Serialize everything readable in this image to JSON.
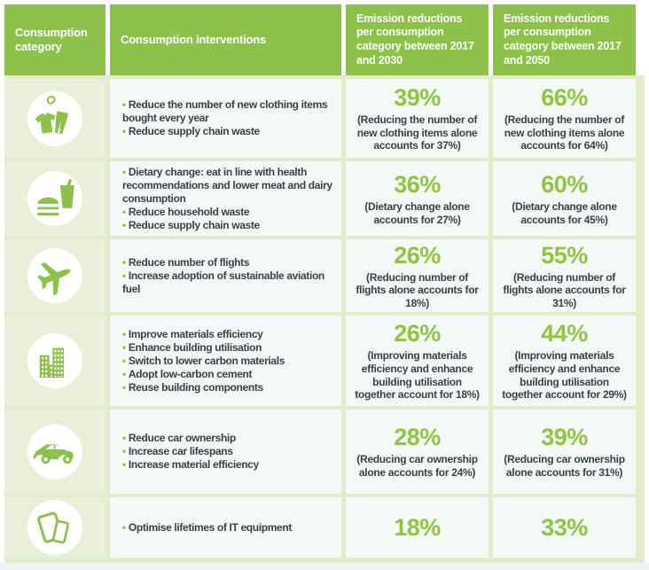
{
  "colors": {
    "header_green": "#8cc24a",
    "percent_green": "#8dc63f",
    "grout_pale_green": "#e3ebcd",
    "icon_cell_green": "#e9efd9",
    "cell_background": "#f4f8f7",
    "text_dark": "#3d3f48",
    "page_background": "#edf3f0"
  },
  "chart_data": {
    "type": "table",
    "columns": [
      "Consumption category",
      "Consumption interventions",
      "Emission reductions per consumption category between 2017 and 2030",
      "Emission reductions per consumption category between 2017 and 2050"
    ],
    "rows": [
      {
        "icon": "clothing-icon",
        "category": "clothing",
        "interventions": [
          "Reduce the number of new clothing items bought every year",
          "Reduce supply chain waste"
        ],
        "pct_2030": "39%",
        "note_2030": "(Reducing the number of new clothing items alone accounts for 37%)",
        "pct_2050": "66%",
        "note_2050": "(Reducing the number of new clothing items alone accounts for 64%)"
      },
      {
        "icon": "food-drink-icon",
        "category": "food",
        "interventions": [
          "Dietary change: eat in line with health recommendations and lower meat and dairy consumption",
          "Reduce household waste",
          "Reduce supply chain waste"
        ],
        "pct_2030": "36%",
        "note_2030": "(Dietary change alone accounts for 27%)",
        "pct_2050": "60%",
        "note_2050": "(Dietary change alone accounts for 45%)"
      },
      {
        "icon": "airplane-icon",
        "category": "aviation",
        "interventions": [
          "Reduce number of flights",
          "Increase adoption of sustainable aviation fuel"
        ],
        "pct_2030": "26%",
        "note_2030": "(Reducing number of flights alone accounts for 18%)",
        "pct_2050": "55%",
        "note_2050": "(Reducing number of flights alone accounts for 31%)"
      },
      {
        "icon": "buildings-icon",
        "category": "buildings",
        "interventions": [
          "Improve materials efficiency",
          "Enhance building utilisation",
          "Switch to lower carbon materials",
          "Adopt low-carbon cement",
          "Reuse building components"
        ],
        "pct_2030": "26%",
        "note_2030": "(Improving materials efficiency and enhance building utilisation together account for 18%)",
        "pct_2050": "44%",
        "note_2050": "(Improving materials efficiency and enhance building utilisation together account for 29%)"
      },
      {
        "icon": "car-icon",
        "category": "cars",
        "interventions": [
          "Reduce car ownership",
          "Increase car lifespans",
          "Increase material efficiency"
        ],
        "pct_2030": "28%",
        "note_2030": "(Reducing car ownership alone accounts for 24%)",
        "pct_2050": "39%",
        "note_2050": "(Reducing car ownership alone accounts for 31%)"
      },
      {
        "icon": "it-devices-icon",
        "category": "it-equipment",
        "interventions": [
          "Optimise lifetimes of IT equipment"
        ],
        "pct_2030": "18%",
        "note_2030": "",
        "pct_2050": "33%",
        "note_2050": ""
      }
    ]
  }
}
